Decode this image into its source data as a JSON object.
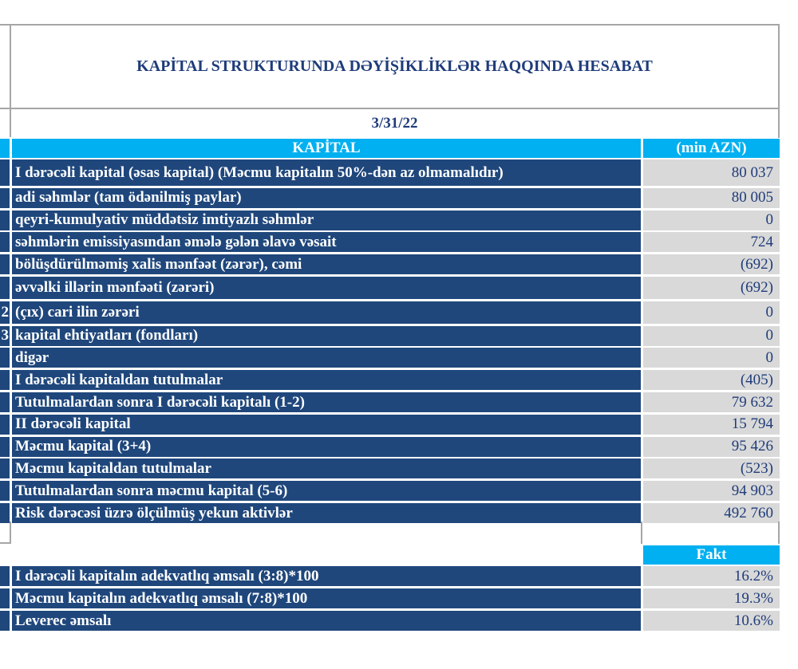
{
  "title": "KAPİTAL STRUKTURUNDA DƏYİŞİKLİKLƏR HAQQINDA HESABAT",
  "date": "3/31/22",
  "header": {
    "label": "KAPİTAL",
    "unit": "(min AZN)"
  },
  "rows": [
    {
      "num": "",
      "label": "I dərəcəli kapital (əsas kapital) (Məcmu kapitalın 50%-dən az olmamalıdır)",
      "value": "80 037"
    },
    {
      "num": "",
      "label": "adi səhmlər (tam ödənilmiş paylar)",
      "value": "80 005"
    },
    {
      "num": "",
      "label": "qeyri-kumulyativ müddətsiz imtiyazlı səhmlər",
      "value": "0"
    },
    {
      "num": "",
      "label": "səhmlərin emissiyasından əmələ gələn  əlavə vəsait",
      "value": "724"
    },
    {
      "num": "",
      "label": "bölüşdürülməmiş xalis mənfəət (zərər), cəmi",
      "value": "(692)"
    },
    {
      "num": "",
      "label": "əvvəlki illərin mənfəəti (zərəri)",
      "value": "(692)"
    },
    {
      "num": "2",
      "label": "(çıx) cari ilin zərəri",
      "value": "0"
    },
    {
      "num": "3",
      "label": "kapital ehtiyatları (fondları)",
      "value": "0"
    },
    {
      "num": "",
      "label": "digər",
      "value": "0"
    },
    {
      "num": "",
      "label": "I dərəcəli kapitaldan  tutulmalar",
      "value": "(405)"
    },
    {
      "num": "",
      "label": "Tutulmalardan  sonra I dərəcəli kapitalı (1-2)",
      "value": "79 632"
    },
    {
      "num": "",
      "label": "II dərəcəli  kapital",
      "value": "15 794"
    },
    {
      "num": "",
      "label": "Məcmu kapital (3+4)",
      "value": "95 426"
    },
    {
      "num": "",
      "label": "Məcmu kapitaldan tutulmalar",
      "value": "(523)"
    },
    {
      "num": "",
      "label": "Tutulmalardan  sonra məcmu kapital (5-6)",
      "value": "94 903"
    },
    {
      "num": "",
      "label": "Risk dərəcəsi üzrə ölçülmüş  yekun aktivlər",
      "value": "492 760"
    }
  ],
  "ratios_header": "Fakt",
  "ratios": [
    {
      "label": "I dərəcəli  kapitalın  adekvatlıq əmsalı (3:8)*100",
      "value": "16.2%"
    },
    {
      "label": "Məcmu kapitalın  adekvatlıq  əmsalı (7:8)*100",
      "value": "19.3%"
    },
    {
      "label": "Leverec əmsalı",
      "value": "10.6%"
    }
  ],
  "colors": {
    "dark_blue": "#1f477c",
    "cyan": "#00b0f0",
    "grey": "#d9d9d9",
    "title": "#1f3c7a"
  }
}
